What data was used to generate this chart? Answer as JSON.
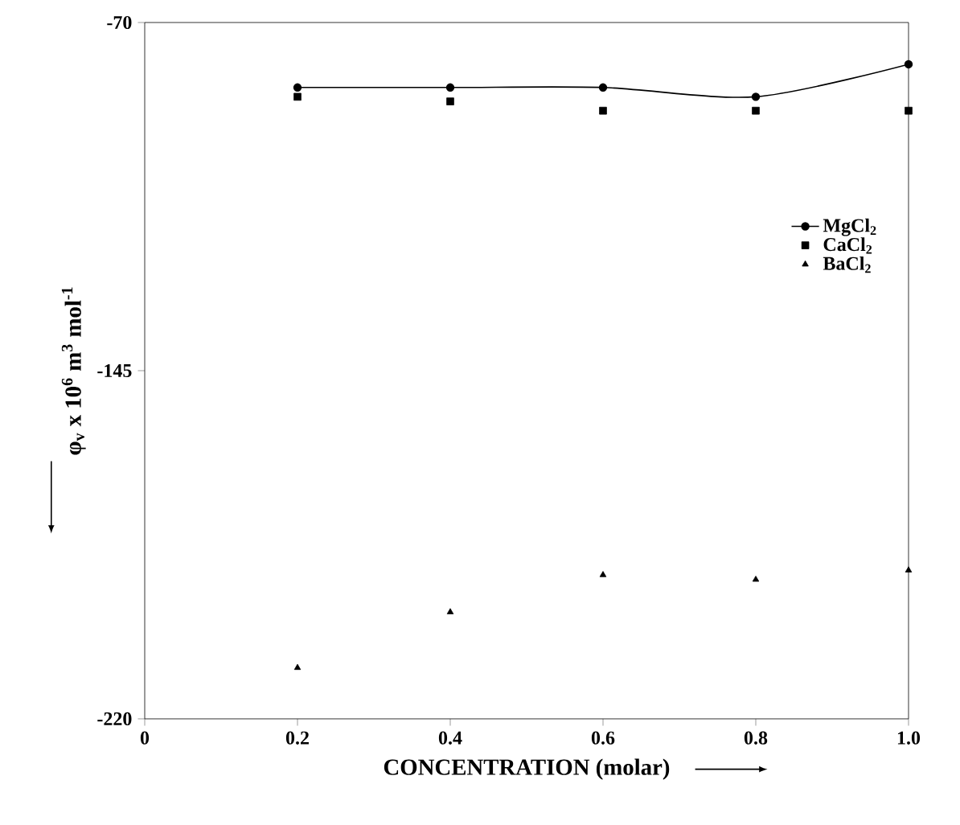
{
  "chart_data": {
    "type": "scatter",
    "xlabel": "CONCENTRATION (molar)",
    "ylabel": "φ$_{v}$ x 10$^{6}$ m$^{3}$ mol$^{-1}$",
    "x": [
      0.2,
      0.4,
      0.6,
      0.8,
      1.0
    ],
    "series": [
      {
        "name": "MgCl$_{2}$",
        "type": "line",
        "marker": "circle",
        "color": "#000000",
        "values": [
          -84,
          -84,
          -84,
          -86,
          -79
        ]
      },
      {
        "name": "CaCl$_{2}$",
        "marker": "square",
        "color": "#000000",
        "values": [
          -86,
          -87,
          -89,
          -89,
          -89
        ]
      },
      {
        "name": "BaCl$_{2}$",
        "marker": "triangle",
        "color": "#000000",
        "values": [
          -209,
          -197,
          -189,
          -190,
          -188
        ]
      }
    ],
    "xlim": [
      0,
      1.0
    ],
    "ylim": [
      -220,
      -70
    ],
    "xticks": [
      0,
      0.2,
      0.4,
      0.6,
      0.8,
      {
        "value": 1,
        "label": "1.0"
      }
    ],
    "yticks": [
      -70,
      -145,
      -220
    ],
    "legend": "right",
    "grid": false
  }
}
